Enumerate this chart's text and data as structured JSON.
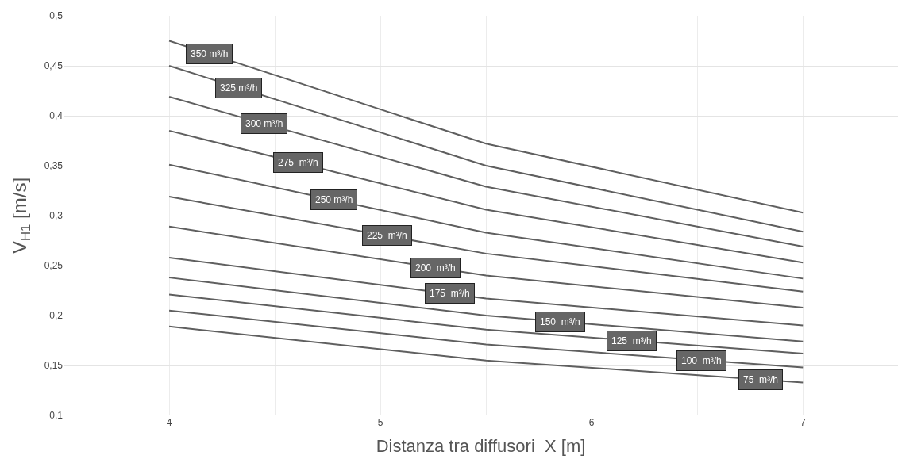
{
  "chart_data": {
    "type": "line",
    "xlabel": "Distanza tra diffusori  X [m]",
    "ylabel": "V$_{H1}$ [m/s]",
    "x": [
      4,
      5.5,
      7
    ],
    "series": [
      {
        "color": "#5f5f5f",
        "values": [
          0.475,
          0.372,
          0.303
        ]
      },
      {
        "color": "#5f5f5f",
        "values": [
          0.45,
          0.35,
          0.284
        ]
      },
      {
        "color": "#5f5f5f",
        "values": [
          0.419,
          0.329,
          0.269
        ]
      },
      {
        "color": "#5f5f5f",
        "values": [
          0.385,
          0.306,
          0.253
        ]
      },
      {
        "color": "#5f5f5f",
        "values": [
          0.351,
          0.283,
          0.237
        ]
      },
      {
        "color": "#5f5f5f",
        "values": [
          0.319,
          0.262,
          0.224
        ]
      },
      {
        "color": "#5f5f5f",
        "values": [
          0.289,
          0.24,
          0.208
        ]
      },
      {
        "color": "#5f5f5f",
        "values": [
          0.258,
          0.217,
          0.19
        ]
      },
      {
        "color": "#5f5f5f",
        "values": [
          0.238,
          0.2,
          0.174
        ]
      },
      {
        "color": "#5f5f5f",
        "values": [
          0.221,
          0.186,
          0.162
        ]
      },
      {
        "color": "#5f5f5f",
        "values": [
          0.205,
          0.171,
          0.148
        ]
      },
      {
        "color": "#5f5f5f",
        "values": [
          0.189,
          0.155,
          0.133
        ]
      }
    ],
    "annotations": [
      {
        "text": "350 m³/h",
        "x": 4.19,
        "y": 0.462
      },
      {
        "text": "325 m³/h",
        "x": 4.33,
        "y": 0.428
      },
      {
        "text": "300 m³/h",
        "x": 4.45,
        "y": 0.392
      },
      {
        "text": "275  m³/h",
        "x": 4.61,
        "y": 0.353
      },
      {
        "text": "250 m³/h",
        "x": 4.78,
        "y": 0.316
      },
      {
        "text": "225  m³/h",
        "x": 5.03,
        "y": 0.28
      },
      {
        "text": "200  m³/h",
        "x": 5.26,
        "y": 0.248
      },
      {
        "text": "175  m³/h",
        "x": 5.33,
        "y": 0.222
      },
      {
        "text": "150  m³/h",
        "x": 5.85,
        "y": 0.194
      },
      {
        "text": "125  m³/h",
        "x": 6.19,
        "y": 0.175
      },
      {
        "text": "100  m³/h",
        "x": 6.52,
        "y": 0.155
      },
      {
        "text": "75  m³/h",
        "x": 6.8,
        "y": 0.136
      }
    ],
    "xlim": [
      3.5,
      7.45
    ],
    "xticks": [
      {
        "value": 4.5,
        "label": null
      },
      4,
      5,
      6,
      7,
      {
        "value": 5.5,
        "label": null
      },
      {
        "value": 6.5,
        "label": null
      }
    ],
    "ylim": [
      0.1,
      0.5
    ],
    "yticks": [
      {
        "value": 0.1,
        "label": "0,1"
      },
      {
        "value": 0.15,
        "label": "0,15"
      },
      {
        "value": 0.2,
        "label": "0,2"
      },
      {
        "value": 0.25,
        "label": "0,25"
      },
      {
        "value": 0.3,
        "label": "0,3"
      },
      {
        "value": 0.35,
        "label": "0,35"
      },
      {
        "value": 0.4,
        "label": "0,4"
      },
      {
        "value": 0.45,
        "label": "0,45"
      },
      {
        "value": 0.5,
        "label": "0,5"
      }
    ],
    "grid": true,
    "marker": "none",
    "line_style": "solid"
  }
}
